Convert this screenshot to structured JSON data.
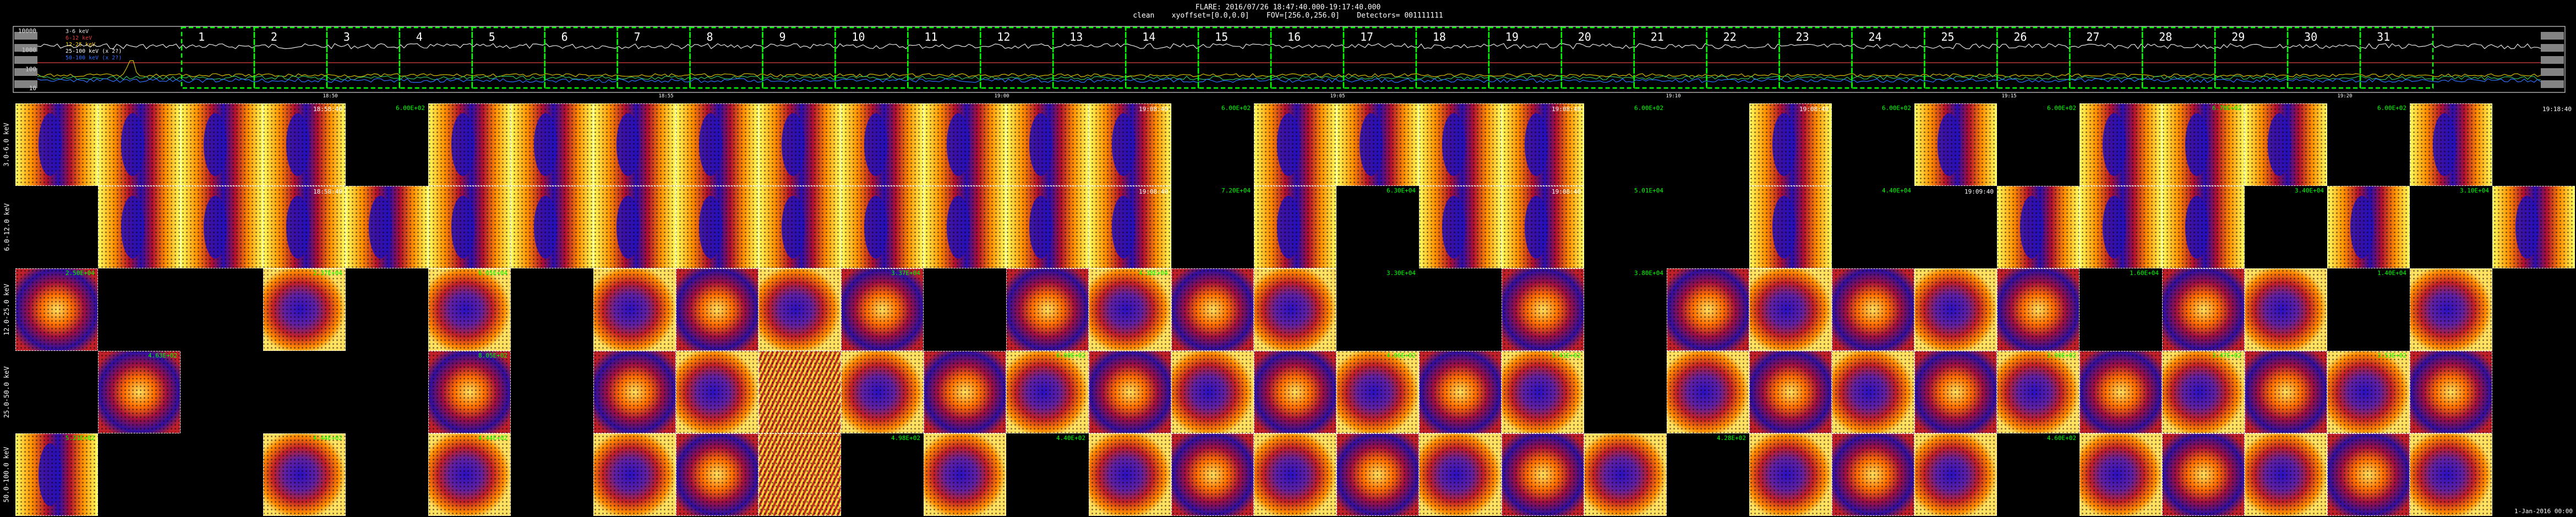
{
  "header": {
    "line1": "FLARE: 2016/07/26 18:47:40.000-19:17:40.000",
    "line2": "clean    xyoffset=[0.0,0.0]    FOV=[256.0,256.0]    Detectors= 001111111"
  },
  "chart_data": {
    "type": "line",
    "title": "",
    "lightcurve": {
      "y_ticks": [
        "10000",
        "1000",
        "100",
        "10"
      ],
      "legend": [
        {
          "label": "3-6 keV",
          "color": "#e8e8e8"
        },
        {
          "label": "6-12 keV",
          "color": "#e04040"
        },
        {
          "label": "12-25 keV",
          "color": "#ffd000"
        },
        {
          "label": "25-100 keV (x 2?)",
          "color": "#ffffff"
        },
        {
          "label": "50-100 keV (x 2?)",
          "color": "#3070ff"
        }
      ],
      "x_tick_labels": [
        "18:50",
        "18:55",
        "19:00",
        "19:05",
        "19:10",
        "19:15",
        "19:20"
      ],
      "interval_numbers": [
        "1",
        "2",
        "3",
        "4",
        "5",
        "6",
        "7",
        "8",
        "9",
        "10",
        "11",
        "12",
        "13",
        "14",
        "15",
        "16",
        "17",
        "18",
        "19",
        "20",
        "21",
        "22",
        "23",
        "24",
        "25",
        "26",
        "27",
        "28",
        "29",
        "30",
        "31"
      ],
      "series": [
        {
          "name": "3-6 keV",
          "color": "#e8e8e8",
          "level": 0.3,
          "noise": 0.08
        },
        {
          "name": "6-12 keV",
          "color": "#e04040",
          "level": 0.55,
          "noise": 0.0
        },
        {
          "name": "12-25 keV",
          "color": "#d9c000",
          "level": 0.74,
          "noise": 0.05
        },
        {
          "name": "25-100 keV",
          "color": "#30c060",
          "level": 0.78,
          "noise": 0.06
        },
        {
          "name": "50-100 keV",
          "color": "#3070ff",
          "level": 0.82,
          "noise": 0.06
        }
      ]
    },
    "energy_bands": [
      "3.0-6.0 keV",
      "6.0-12.0 keV",
      "12.0-25.0 keV",
      "25.0-50.0 keV",
      "50.0-100.0 keV"
    ],
    "image_grid": {
      "columns": 31,
      "rows": [
        {
          "band": "3.0-6.0 keV",
          "panels": [
            {
              "c": 0,
              "s": "f"
            },
            {
              "c": 1,
              "s": "f"
            },
            {
              "c": 2,
              "s": "f"
            },
            {
              "c": 3,
              "s": "f",
              "t": "18:58:40"
            },
            {
              "c": 4,
              "lbl": "6.00E+02"
            },
            {
              "c": 5,
              "s": "f"
            },
            {
              "c": 6,
              "s": "f"
            },
            {
              "c": 7,
              "s": "f"
            },
            {
              "c": 8,
              "s": "f"
            },
            {
              "c": 9,
              "s": "f"
            },
            {
              "c": 10,
              "s": "f"
            },
            {
              "c": 11,
              "s": "f"
            },
            {
              "c": 12,
              "s": "f"
            },
            {
              "c": 13,
              "s": "f",
              "t": "19:08:40"
            },
            {
              "c": 14,
              "lbl": "6.00E+02"
            },
            {
              "c": 15,
              "s": "f"
            },
            {
              "c": 16,
              "s": "f"
            },
            {
              "c": 17,
              "s": "f"
            },
            {
              "c": 18,
              "s": "f",
              "t": "19:08:40"
            },
            {
              "c": 19,
              "lbl": "6.00E+02"
            },
            {
              "c": 20
            },
            {
              "c": 21,
              "s": "f",
              "t": "19:08:40"
            },
            {
              "c": 22,
              "lbl": "6.00E+02"
            },
            {
              "c": 23,
              "s": "f"
            },
            {
              "c": 24,
              "lbl": "6.00E+02"
            },
            {
              "c": 25,
              "s": "f"
            },
            {
              "c": 26,
              "s": "f",
              "lbl": "6.70E+02"
            },
            {
              "c": 27,
              "s": "f"
            },
            {
              "c": 28,
              "lbl": "6.00E+02"
            },
            {
              "c": 29,
              "s": "f"
            },
            {
              "c": 30,
              "t": "19:18:40"
            }
          ]
        },
        {
          "band": "6.0-12.0 keV",
          "panels": [
            {
              "c": 1,
              "s": "f"
            },
            {
              "c": 2,
              "s": "f"
            },
            {
              "c": 3,
              "s": "f",
              "t": "18:58:40"
            },
            {
              "c": 4,
              "s": "f"
            },
            {
              "c": 5,
              "s": "f"
            },
            {
              "c": 6,
              "s": "f"
            },
            {
              "c": 7,
              "s": "f"
            },
            {
              "c": 8,
              "s": "f"
            },
            {
              "c": 9,
              "s": "f"
            },
            {
              "c": 10,
              "s": "f"
            },
            {
              "c": 11,
              "s": "f"
            },
            {
              "c": 12,
              "s": "f"
            },
            {
              "c": 13,
              "s": "f",
              "t": "19:08:40"
            },
            {
              "c": 14,
              "lbl": "7.20E+04"
            },
            {
              "c": 15,
              "s": "f"
            },
            {
              "c": 16,
              "lbl": "6.30E+04"
            },
            {
              "c": 17,
              "s": "f"
            },
            {
              "c": 18,
              "s": "f",
              "t": "19:08:40"
            },
            {
              "c": 19,
              "lbl": "5.01E+04"
            },
            {
              "c": 21,
              "s": "f"
            },
            {
              "c": 22,
              "lbl": "4.40E+04"
            },
            {
              "c": 23,
              "t": "19:09:40"
            },
            {
              "c": 24,
              "s": "f"
            },
            {
              "c": 25,
              "s": "f"
            },
            {
              "c": 26,
              "s": "f"
            },
            {
              "c": 27,
              "lbl": "3.40E+04"
            },
            {
              "c": 28,
              "s": "f"
            },
            {
              "c": 29,
              "lbl": "3.10E+04"
            },
            {
              "c": 30,
              "s": "f"
            }
          ]
        },
        {
          "band": "12.0-25.0 keV",
          "panels": [
            {
              "c": 0,
              "s": "n",
              "lbl": "2.50E+04"
            },
            {
              "c": 3,
              "s": "n",
              "lbl": "2.37E+04"
            },
            {
              "c": 5,
              "s": "n",
              "lbl": "6.05E+04"
            },
            {
              "c": 7,
              "s": "n"
            },
            {
              "c": 8,
              "s": "n"
            },
            {
              "c": 9,
              "s": "n"
            },
            {
              "c": 10,
              "s": "n",
              "lbl": "3.37E+04"
            },
            {
              "c": 12,
              "s": "n"
            },
            {
              "c": 13,
              "s": "n",
              "lbl": "4.38E+04"
            },
            {
              "c": 14,
              "s": "n"
            },
            {
              "c": 15,
              "s": "n"
            },
            {
              "c": 16,
              "lbl": "3.30E+04"
            },
            {
              "c": 18,
              "s": "n"
            },
            {
              "c": 19,
              "lbl": "3.80E+04"
            },
            {
              "c": 20,
              "s": "n"
            },
            {
              "c": 21,
              "s": "n"
            },
            {
              "c": 22,
              "s": "n"
            },
            {
              "c": 23,
              "s": "n"
            },
            {
              "c": 24,
              "s": "n"
            },
            {
              "c": 25,
              "lbl": "1.60E+04"
            },
            {
              "c": 26,
              "s": "n"
            },
            {
              "c": 27,
              "s": "n"
            },
            {
              "c": 28,
              "lbl": "1.40E+04"
            },
            {
              "c": 29,
              "s": "n"
            }
          ]
        },
        {
          "band": "25.0-50.0 keV",
          "panels": [
            {
              "c": 1,
              "s": "n",
              "lbl": "4.63E+02"
            },
            {
              "c": 5,
              "s": "n",
              "lbl": "8.05E+02"
            },
            {
              "c": 7,
              "s": "n"
            },
            {
              "c": 8,
              "s": "n"
            },
            {
              "c": 9,
              "s": "s"
            },
            {
              "c": 10,
              "s": "n"
            },
            {
              "c": 11,
              "s": "n"
            },
            {
              "c": 12,
              "s": "n",
              "lbl": "6.00E+02"
            },
            {
              "c": 13,
              "s": "n"
            },
            {
              "c": 14,
              "s": "n"
            },
            {
              "c": 15,
              "s": "n"
            },
            {
              "c": 16,
              "s": "n",
              "lbl": "4.06E+02"
            },
            {
              "c": 17,
              "s": "n"
            },
            {
              "c": 18,
              "s": "n",
              "lbl": "3.41E+02"
            },
            {
              "c": 20,
              "s": "n"
            },
            {
              "c": 21,
              "s": "n"
            },
            {
              "c": 22,
              "s": "n"
            },
            {
              "c": 23,
              "s": "n"
            },
            {
              "c": 24,
              "s": "n",
              "lbl": "3.90E+02"
            },
            {
              "c": 25,
              "s": "n"
            },
            {
              "c": 26,
              "s": "n",
              "lbl": "3.47E+02"
            },
            {
              "c": 27,
              "s": "n"
            },
            {
              "c": 28,
              "s": "n",
              "lbl": "3.53E+02"
            },
            {
              "c": 29,
              "s": "n"
            }
          ]
        },
        {
          "band": "50.0-100.0 keV",
          "panels": [
            {
              "c": 0,
              "s": "f",
              "lbl": "5.21E+02"
            },
            {
              "c": 3,
              "s": "n",
              "lbl": "4.44E+02"
            },
            {
              "c": 5,
              "s": "n",
              "lbl": "4.44E+02"
            },
            {
              "c": 7,
              "s": "n"
            },
            {
              "c": 8,
              "s": "n"
            },
            {
              "c": 9,
              "s": "s"
            },
            {
              "c": 10,
              "lbl": "4.98E+02"
            },
            {
              "c": 11,
              "s": "n"
            },
            {
              "c": 12,
              "lbl": "4.40E+02"
            },
            {
              "c": 13,
              "s": "n"
            },
            {
              "c": 14,
              "s": "n"
            },
            {
              "c": 15,
              "s": "n"
            },
            {
              "c": 16,
              "s": "n"
            },
            {
              "c": 17,
              "s": "n"
            },
            {
              "c": 18,
              "s": "n"
            },
            {
              "c": 19,
              "s": "n"
            },
            {
              "c": 20,
              "lbl": "4.28E+02"
            },
            {
              "c": 21,
              "s": "n"
            },
            {
              "c": 22,
              "s": "n"
            },
            {
              "c": 23,
              "s": "n"
            },
            {
              "c": 24,
              "lbl": "4.60E+02"
            },
            {
              "c": 25,
              "s": "n"
            },
            {
              "c": 26,
              "s": "n"
            },
            {
              "c": 27,
              "s": "n"
            },
            {
              "c": 28,
              "s": "n"
            },
            {
              "c": 29,
              "s": "n"
            }
          ]
        }
      ]
    }
  },
  "colors": {
    "grid_green": "#00ff00",
    "frame": "#ffffff",
    "label_green": "#00ff00"
  },
  "footer": "1-Jan-2016 00:00"
}
